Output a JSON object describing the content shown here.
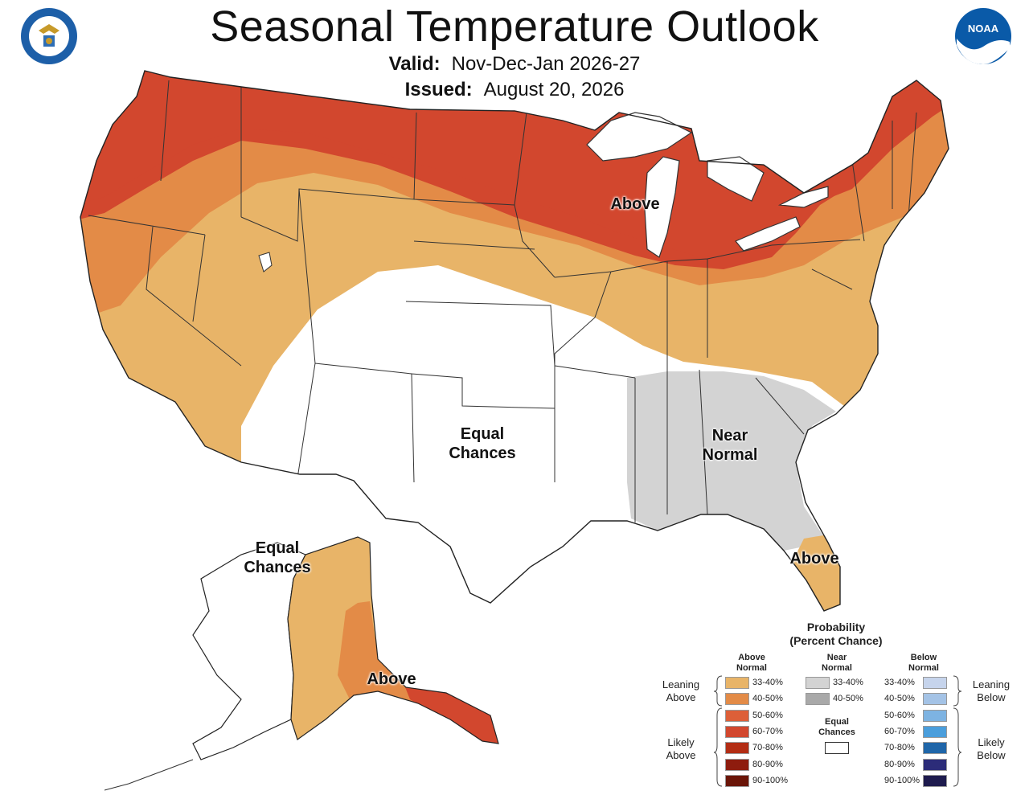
{
  "header": {
    "title": "Seasonal Temperature Outlook",
    "valid_label": "Valid:",
    "valid_value": "Nov-Dec-Jan 2026-27",
    "issued_label": "Issued:",
    "issued_value": "August 20, 2026"
  },
  "logos": {
    "left": "department-of-commerce-seal",
    "right_text": "NOAA"
  },
  "map_labels": {
    "above_north": "Above",
    "equal_chances_line1": "Equal",
    "equal_chances_line2": "Chances",
    "near_normal_line1": "Near",
    "near_normal_line2": "Normal",
    "above_florida": "Above",
    "alaska_equal_line1": "Equal",
    "alaska_equal_line2": "Chances",
    "alaska_above": "Above"
  },
  "legend": {
    "title_line1": "Probability",
    "title_line2": "(Percent Chance)",
    "above_head_line1": "Above",
    "above_head_line2": "Normal",
    "near_head_line1": "Near",
    "near_head_line2": "Normal",
    "below_head_line1": "Below",
    "below_head_line2": "Normal",
    "leaning_above_line1": "Leaning",
    "leaning_above_line2": "Above",
    "likely_above_line1": "Likely",
    "likely_above_line2": "Above",
    "leaning_below_line1": "Leaning",
    "leaning_below_line2": "Below",
    "likely_below_line1": "Likely",
    "likely_below_line2": "Below",
    "equal_line1": "Equal",
    "equal_line2": "Chances",
    "above": [
      {
        "range": "33-40%",
        "color": "#E8B468"
      },
      {
        "range": "40-50%",
        "color": "#E38B47"
      },
      {
        "range": "50-60%",
        "color": "#DD5F38"
      },
      {
        "range": "60-70%",
        "color": "#D2472E"
      },
      {
        "range": "70-80%",
        "color": "#B32D14"
      },
      {
        "range": "80-90%",
        "color": "#8E1C0E"
      },
      {
        "range": "90-100%",
        "color": "#6A1508"
      }
    ],
    "near": [
      {
        "range": "33-40%",
        "color": "#D3D3D3"
      },
      {
        "range": "40-50%",
        "color": "#A9A9A9"
      }
    ],
    "below": [
      {
        "range": "33-40%",
        "color": "#C6D4EC"
      },
      {
        "range": "40-50%",
        "color": "#A4C3E6"
      },
      {
        "range": "50-60%",
        "color": "#7DB3E2"
      },
      {
        "range": "60-70%",
        "color": "#4A9EDC"
      },
      {
        "range": "70-80%",
        "color": "#1F66A9"
      },
      {
        "range": "80-90%",
        "color": "#2C2C79"
      },
      {
        "range": "90-100%",
        "color": "#1E1B4E"
      }
    ],
    "equal_color": "#FFFFFF"
  }
}
